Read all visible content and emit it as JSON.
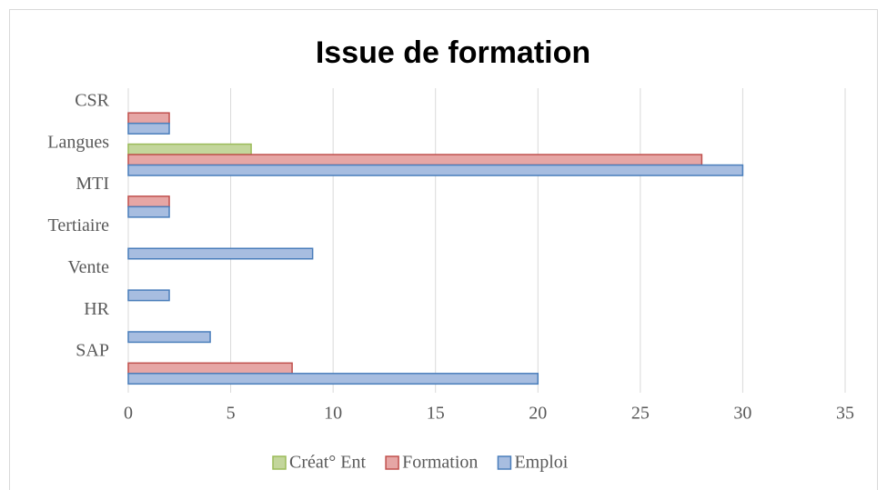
{
  "chart_data": {
    "type": "bar",
    "orientation": "horizontal",
    "title": "Issue de formation",
    "categories": [
      "SAP",
      "HR",
      "Vente",
      "Tertiaire",
      "MTI",
      "Langues",
      "CSR"
    ],
    "series": [
      {
        "name": "Créat° Ent",
        "color": "#c3d69b",
        "values": [
          null,
          null,
          null,
          null,
          null,
          6,
          null
        ]
      },
      {
        "name": "Formation",
        "color": "#e6a6a5",
        "values": [
          8,
          null,
          null,
          null,
          2,
          28,
          2
        ]
      },
      {
        "name": "Emploi",
        "color": "#a7bde0",
        "values": [
          20,
          4,
          2,
          9,
          2,
          30,
          2
        ]
      }
    ],
    "xlim": [
      0,
      35
    ],
    "xticks": [
      0,
      5,
      10,
      15,
      20,
      25,
      30,
      35
    ],
    "grid": true,
    "legend": "bottom"
  }
}
